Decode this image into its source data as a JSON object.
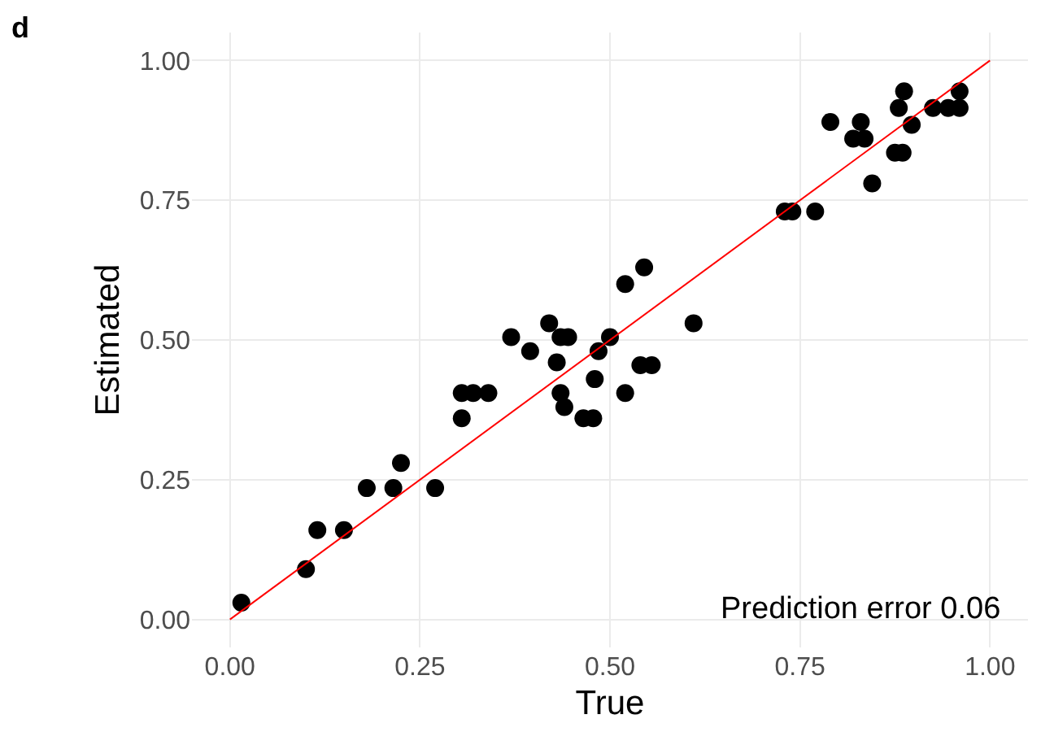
{
  "chart_data": {
    "type": "scatter",
    "title": "d",
    "xlabel": "True",
    "ylabel": "Estimated",
    "xlim": [
      -0.05,
      1.05
    ],
    "ylim": [
      -0.05,
      1.05
    ],
    "xticks": [
      {
        "value": 0,
        "label": "0.00"
      },
      {
        "value": 0.25,
        "label": "0.25"
      },
      {
        "value": 0.5,
        "label": "0.50"
      },
      {
        "value": 0.75,
        "label": "0.75"
      },
      {
        "value": 1,
        "label": "1.00"
      }
    ],
    "yticks": [
      {
        "value": 0,
        "label": "0.00"
      },
      {
        "value": 0.25,
        "label": "0.25"
      },
      {
        "value": 0.5,
        "label": "0.50"
      },
      {
        "value": 0.75,
        "label": "0.75"
      },
      {
        "value": 1,
        "label": "1.00"
      }
    ],
    "grid": true,
    "annotations": [
      "Prediction error 0.06"
    ],
    "series": [
      {
        "marker": "circle",
        "color": "#000000",
        "x": [
          0.015,
          0.1,
          0.115,
          0.15,
          0.18,
          0.215,
          0.225,
          0.27,
          0.305,
          0.305,
          0.32,
          0.34,
          0.37,
          0.395,
          0.42,
          0.435,
          0.445,
          0.43,
          0.435,
          0.44,
          0.465,
          0.478,
          0.48,
          0.485,
          0.5,
          0.52,
          0.52,
          0.545,
          0.54,
          0.555,
          0.61,
          0.73,
          0.74,
          0.77,
          0.845,
          0.79,
          0.82,
          0.83,
          0.835,
          0.875,
          0.885,
          0.88,
          0.887,
          0.897,
          0.925,
          0.945,
          0.96,
          0.96
        ],
        "values": [
          0.03,
          0.09,
          0.16,
          0.16,
          0.235,
          0.235,
          0.28,
          0.235,
          0.36,
          0.405,
          0.405,
          0.405,
          0.505,
          0.48,
          0.53,
          0.505,
          0.505,
          0.46,
          0.405,
          0.38,
          0.36,
          0.36,
          0.43,
          0.48,
          0.505,
          0.405,
          0.6,
          0.63,
          0.455,
          0.455,
          0.53,
          0.73,
          0.73,
          0.73,
          0.78,
          0.89,
          0.86,
          0.89,
          0.86,
          0.835,
          0.835,
          0.915,
          0.945,
          0.885,
          0.915,
          0.915,
          0.915,
          0.945
        ]
      },
      {
        "type": "line",
        "marker": "none",
        "color": "#ff0000",
        "x": [
          0,
          1
        ],
        "values": [
          0,
          1
        ]
      }
    ]
  }
}
